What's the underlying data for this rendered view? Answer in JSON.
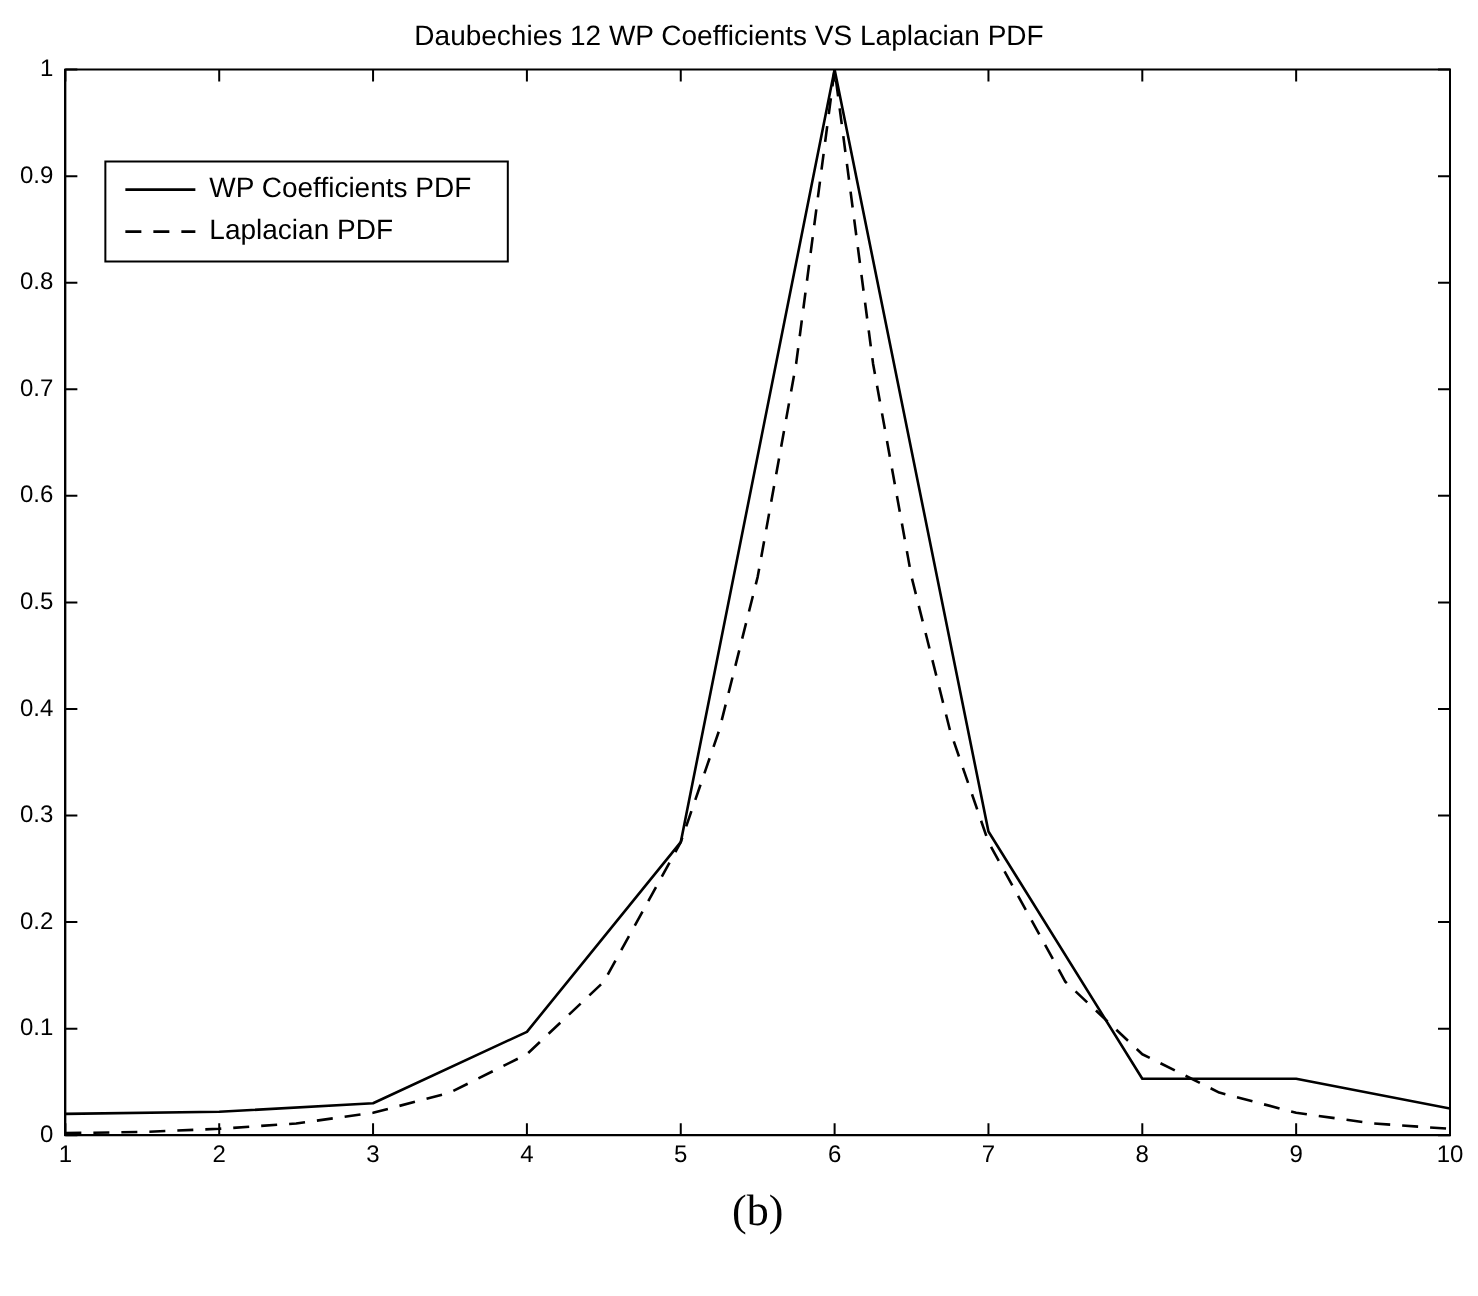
{
  "chart_data": {
    "type": "line",
    "title": "Daubechies 12 WP Coefficients VS Laplacian PDF",
    "annotations": [
      "(b)"
    ],
    "xlim": [
      1,
      10
    ],
    "xticks": [
      1,
      2,
      3,
      4,
      5,
      6,
      7,
      8,
      9,
      10
    ],
    "ylim": [
      0,
      1
    ],
    "yticks": [
      0,
      0.1,
      0.2,
      0.3,
      0.4,
      0.5,
      0.6,
      0.7,
      0.8,
      0.9,
      1
    ],
    "grid": false,
    "legend": "top left",
    "marker": "none",
    "series": [
      {
        "name": "WP Coefficients PDF",
        "color": "#000000",
        "line_style": "solid",
        "x": [
          1,
          2,
          3,
          4,
          5,
          6,
          7,
          8,
          9,
          10
        ],
        "values": [
          0.02,
          0.022,
          0.03,
          0.097,
          0.275,
          1,
          0.285,
          0.053,
          0.053,
          0.025
        ]
      },
      {
        "name": "Laplacian PDF",
        "color": "#000000",
        "line_style": "dashed",
        "x": [
          1,
          1.5,
          2,
          2.5,
          3,
          3.5,
          4,
          4.5,
          5,
          5.25,
          5.5,
          5.75,
          6,
          6.25,
          6.5,
          6.75,
          7,
          7.5,
          8,
          8.5,
          9,
          9.5,
          10
        ],
        "values": [
          0.002,
          0.003,
          0.006,
          0.011,
          0.021,
          0.04,
          0.076,
          0.144,
          0.275,
          0.38,
          0.524,
          0.724,
          1,
          0.724,
          0.524,
          0.38,
          0.275,
          0.144,
          0.076,
          0.04,
          0.021,
          0.011,
          0.006
        ]
      }
    ]
  }
}
